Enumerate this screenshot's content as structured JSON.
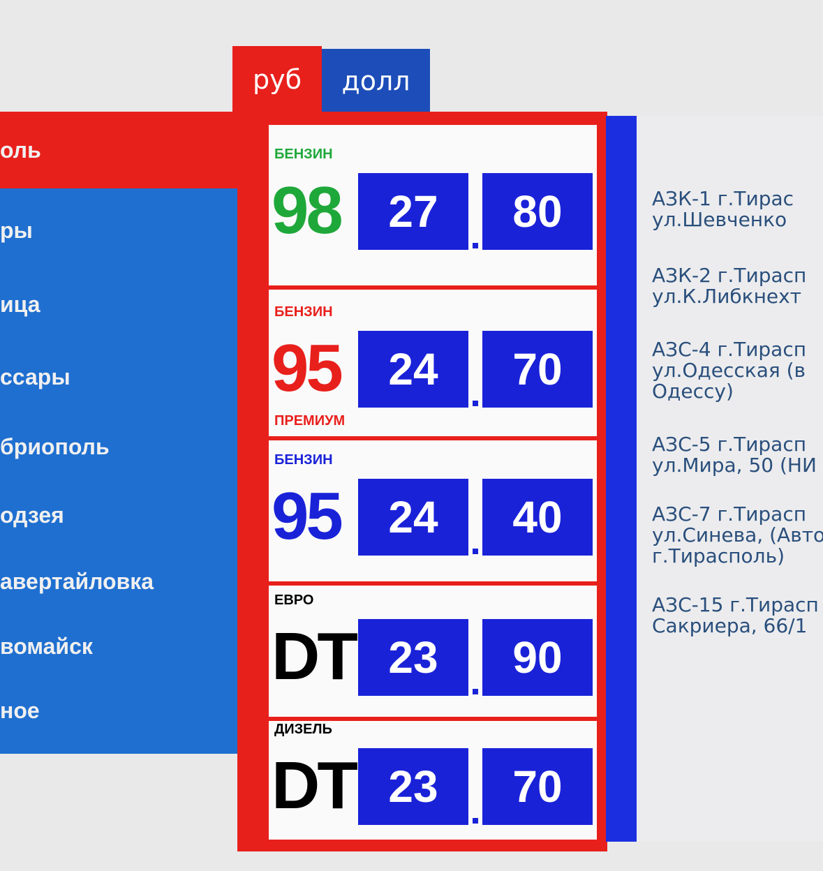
{
  "currency_tabs": [
    {
      "label": "руб",
      "active": true,
      "color": "#e8201c"
    },
    {
      "label": "долл",
      "active": false,
      "color": "#1c4db8"
    }
  ],
  "sidebar": {
    "items": [
      {
        "label": "оль",
        "active": true
      },
      {
        "label": "ры"
      },
      {
        "label": "ица"
      },
      {
        "label": "ссары"
      },
      {
        "label": "бриополь"
      },
      {
        "label": "одзея"
      },
      {
        "label": "авертайловка"
      },
      {
        "label": "вомайск"
      },
      {
        "label": "ное"
      }
    ]
  },
  "fuels": [
    {
      "label": "БЕНЗИН",
      "number": "98",
      "sub": "",
      "number_color": "#1fa83a",
      "label_color": "#1fa83a",
      "rub": "27",
      "kop": "80"
    },
    {
      "label": "БЕНЗИН",
      "number": "95",
      "sub": "ПРЕМИУМ",
      "number_color": "#e8201c",
      "label_color": "#e8201c",
      "rub": "24",
      "kop": "70"
    },
    {
      "label": "БЕНЗИН",
      "number": "95",
      "sub": "",
      "number_color": "#1a22d8",
      "label_color": "#1a22d8",
      "rub": "24",
      "kop": "40"
    },
    {
      "label": "ЕВРО",
      "number": "DT",
      "sub": "",
      "number_color": "#000000",
      "label_color": "#000000",
      "rub": "23",
      "kop": "90"
    },
    {
      "label": "ДИЗЕЛЬ",
      "number": "DT",
      "sub": "",
      "number_color": "#000000",
      "label_color": "#000000",
      "rub": "23",
      "kop": "70"
    }
  ],
  "stations": [
    [
      "АЗК-1 г.Тирас",
      "ул.Шевченко"
    ],
    [
      "АЗК-2 г.Тирасп",
      "ул.К.Либкнехт"
    ],
    [
      "АЗС-4 г.Тирасп",
      "ул.Одесская (в",
      "Одессу)"
    ],
    [
      "АЗС-5 г.Тирасп",
      "ул.Мира, 50 (НИ"
    ],
    [
      "АЗС-7 г.Тирасп",
      "ул.Синева, (Авто",
      "г.Тирасполь)"
    ],
    [
      "АЗС-15 г.Тирасп",
      "Сакриера, 66/1"
    ]
  ]
}
